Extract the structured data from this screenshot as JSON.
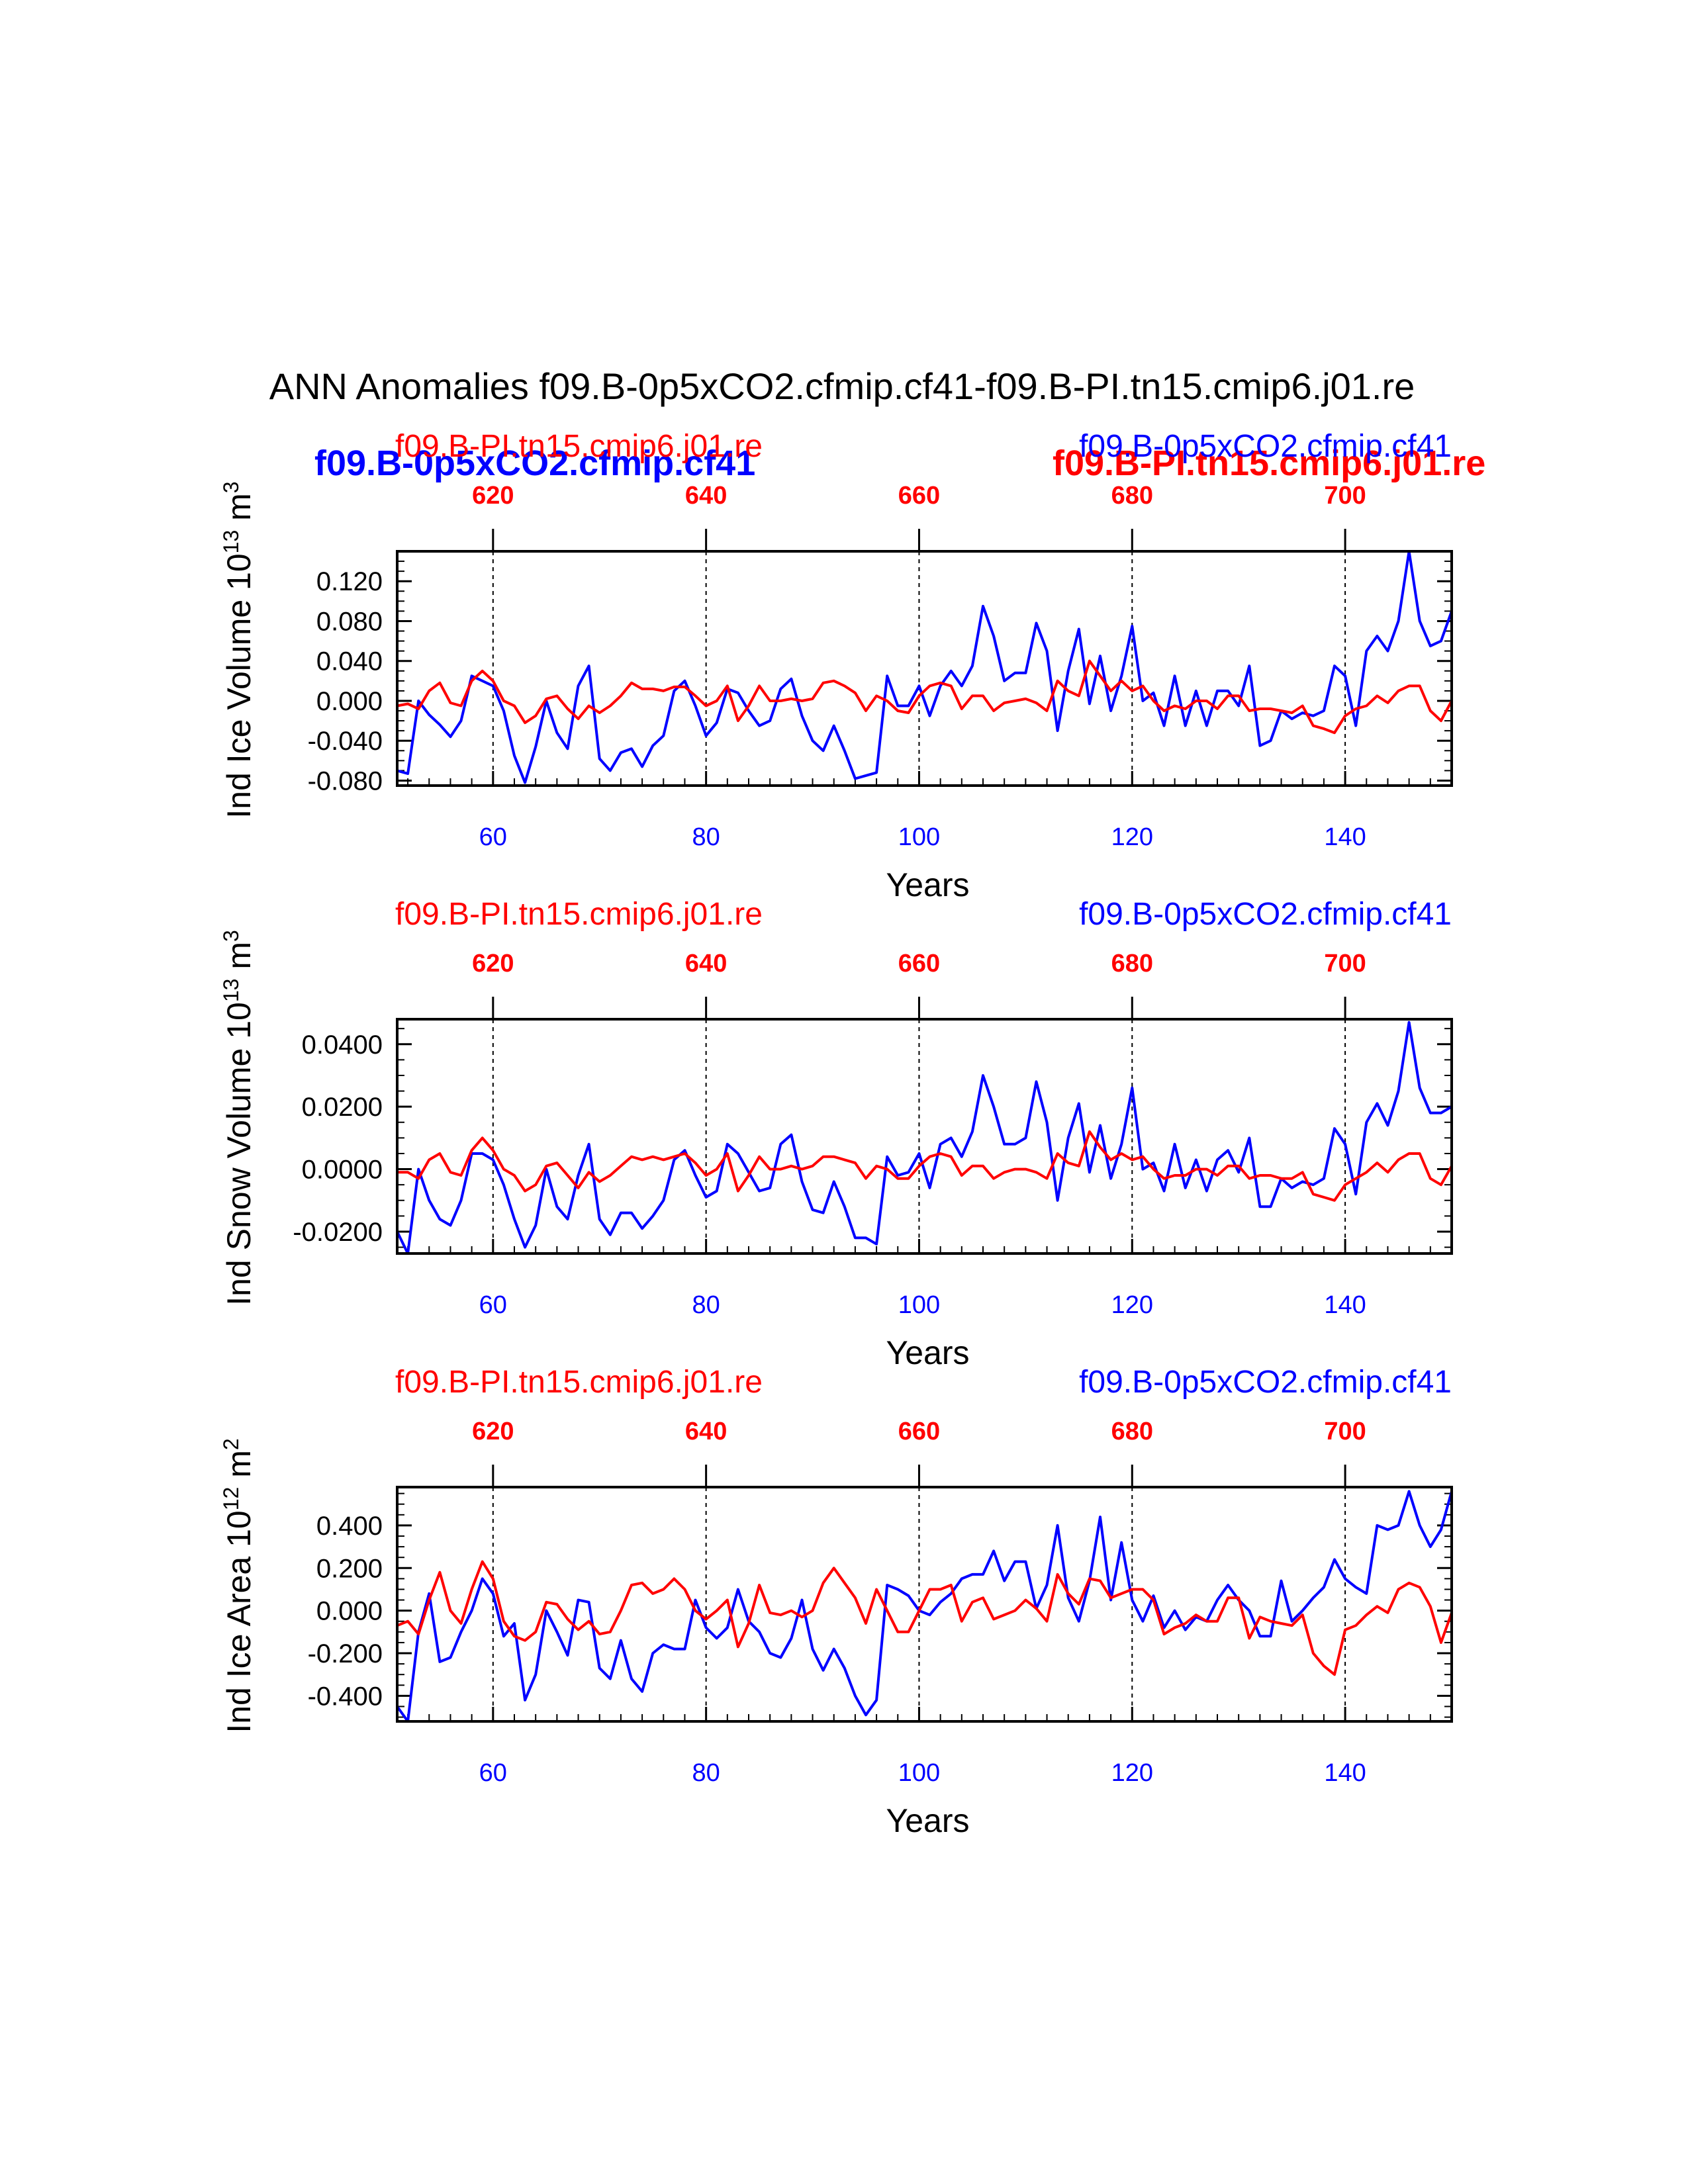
{
  "title": "ANN Anomalies f09.B-0p5xCO2.cfmip.cf41-f09.B-PI.tn15.cmip6.j01.re",
  "overlay_legend": {
    "left": "f09.B-0p5xCO2.cfmip.cf41",
    "right": "f09.B-PI.tn15.cmip6.j01.re"
  },
  "colors": {
    "blue": "#0000ff",
    "red": "#ff0000",
    "black": "#000000"
  },
  "chart_data": [
    {
      "type": "line",
      "ylabel": "Ind Ice Volume 10",
      "ylabel_exp": "13",
      "ylabel_unit": " m",
      "ylabel_unit_exp": "3",
      "xlabel": "Years",
      "top_left_label": "f09.B-PI.tn15.cmip6.j01.re",
      "top_right_label": "f09.B-0p5xCO2.cfmip.cf41",
      "xlim": [
        51,
        150
      ],
      "ylim": [
        -0.085,
        0.15
      ],
      "yticks": [
        -0.08,
        -0.04,
        0.0,
        0.04,
        0.08,
        0.12
      ],
      "yticklabels": [
        "-0.080",
        "-0.040",
        "0.000",
        "0.040",
        "0.080",
        "0.120"
      ],
      "xticks_bottom": [
        60,
        80,
        100,
        120,
        140
      ],
      "xticks_top": [
        620,
        640,
        660,
        680,
        700
      ],
      "x": [
        51,
        52,
        53,
        54,
        55,
        56,
        57,
        58,
        59,
        60,
        61,
        62,
        63,
        64,
        65,
        66,
        67,
        68,
        69,
        70,
        71,
        72,
        73,
        74,
        75,
        76,
        77,
        78,
        79,
        80,
        81,
        82,
        83,
        84,
        85,
        86,
        87,
        88,
        89,
        90,
        91,
        92,
        93,
        94,
        95,
        96,
        97,
        98,
        99,
        100,
        101,
        102,
        103,
        104,
        105,
        106,
        107,
        108,
        109,
        110,
        111,
        112,
        113,
        114,
        115,
        116,
        117,
        118,
        119,
        120,
        121,
        122,
        123,
        124,
        125,
        126,
        127,
        128,
        129,
        130,
        131,
        132,
        133,
        134,
        135,
        136,
        137,
        138,
        139,
        140,
        141,
        142,
        143,
        144,
        145,
        146,
        147,
        148,
        149,
        150
      ],
      "series": [
        {
          "name": "f09.B-0p5xCO2.cfmip.cf41",
          "color": "blue",
          "values": [
            -0.07,
            -0.073,
            0.0,
            -0.014,
            -0.024,
            -0.036,
            -0.02,
            0.025,
            0.02,
            0.015,
            -0.01,
            -0.055,
            -0.082,
            -0.046,
            0.0,
            -0.032,
            -0.048,
            0.015,
            0.035,
            -0.058,
            -0.07,
            -0.052,
            -0.048,
            -0.066,
            -0.045,
            -0.035,
            0.01,
            0.02,
            -0.005,
            -0.035,
            -0.022,
            0.012,
            0.008,
            -0.01,
            -0.025,
            -0.02,
            0.012,
            0.022,
            -0.015,
            -0.04,
            -0.05,
            -0.025,
            -0.05,
            -0.078,
            -0.075,
            -0.072,
            0.025,
            -0.005,
            -0.005,
            0.015,
            -0.015,
            0.015,
            0.03,
            0.015,
            0.035,
            0.095,
            0.065,
            0.02,
            0.028,
            0.028,
            0.078,
            0.05,
            -0.03,
            0.03,
            0.072,
            -0.003,
            0.045,
            -0.01,
            0.025,
            0.075,
            0.0,
            0.008,
            -0.025,
            0.025,
            -0.025,
            0.01,
            -0.025,
            0.01,
            0.01,
            -0.005,
            0.035,
            -0.045,
            -0.04,
            -0.01,
            -0.018,
            -0.012,
            -0.015,
            -0.01,
            0.035,
            0.025,
            -0.025,
            0.05,
            0.065,
            0.05,
            0.08,
            0.15,
            0.08,
            0.055,
            0.06,
            0.09
          ]
        },
        {
          "name": "f09.B-PI.tn15.cmip6.j01.re",
          "color": "red",
          "values": [
            -0.005,
            -0.003,
            -0.008,
            0.01,
            0.018,
            -0.002,
            -0.005,
            0.02,
            0.03,
            0.02,
            0.0,
            -0.005,
            -0.022,
            -0.015,
            0.002,
            0.005,
            -0.008,
            -0.018,
            -0.005,
            -0.012,
            -0.005,
            0.005,
            0.018,
            0.012,
            0.012,
            0.01,
            0.014,
            0.014,
            0.005,
            -0.005,
            0.0,
            0.015,
            -0.02,
            -0.005,
            0.015,
            0.0,
            0.0,
            0.002,
            0.0,
            0.002,
            0.018,
            0.02,
            0.015,
            0.008,
            -0.01,
            0.005,
            0.0,
            -0.01,
            -0.012,
            0.005,
            0.015,
            0.018,
            0.015,
            -0.008,
            0.005,
            0.005,
            -0.01,
            -0.002,
            0.0,
            0.002,
            -0.002,
            -0.01,
            0.02,
            0.01,
            0.005,
            0.04,
            0.025,
            0.01,
            0.02,
            0.01,
            0.015,
            0.0,
            -0.01,
            -0.005,
            -0.008,
            0.0,
            0.0,
            -0.008,
            0.005,
            0.005,
            -0.01,
            -0.008,
            -0.008,
            -0.01,
            -0.012,
            -0.005,
            -0.025,
            -0.028,
            -0.032,
            -0.015,
            -0.008,
            -0.005,
            0.005,
            -0.002,
            0.01,
            0.015,
            0.015,
            -0.01,
            -0.02,
            0.0
          ]
        }
      ]
    },
    {
      "type": "line",
      "ylabel": "Ind Snow Volume 10",
      "ylabel_exp": "13",
      "ylabel_unit": " m",
      "ylabel_unit_exp": "3",
      "xlabel": "Years",
      "top_left_label": "f09.B-PI.tn15.cmip6.j01.re",
      "top_right_label": "f09.B-0p5xCO2.cfmip.cf41",
      "xlim": [
        51,
        150
      ],
      "ylim": [
        -0.027,
        0.048
      ],
      "yticks": [
        -0.02,
        0.0,
        0.02,
        0.04
      ],
      "yticklabels": [
        "-0.0200",
        "0.0000",
        "0.0200",
        "0.0400"
      ],
      "xticks_bottom": [
        60,
        80,
        100,
        120,
        140
      ],
      "xticks_top": [
        620,
        640,
        660,
        680,
        700
      ],
      "x": [
        51,
        52,
        53,
        54,
        55,
        56,
        57,
        58,
        59,
        60,
        61,
        62,
        63,
        64,
        65,
        66,
        67,
        68,
        69,
        70,
        71,
        72,
        73,
        74,
        75,
        76,
        77,
        78,
        79,
        80,
        81,
        82,
        83,
        84,
        85,
        86,
        87,
        88,
        89,
        90,
        91,
        92,
        93,
        94,
        95,
        96,
        97,
        98,
        99,
        100,
        101,
        102,
        103,
        104,
        105,
        106,
        107,
        108,
        109,
        110,
        111,
        112,
        113,
        114,
        115,
        116,
        117,
        118,
        119,
        120,
        121,
        122,
        123,
        124,
        125,
        126,
        127,
        128,
        129,
        130,
        131,
        132,
        133,
        134,
        135,
        136,
        137,
        138,
        139,
        140,
        141,
        142,
        143,
        144,
        145,
        146,
        147,
        148,
        149,
        150
      ],
      "series": [
        {
          "name": "f09.B-0p5xCO2.cfmip.cf41",
          "color": "blue",
          "values": [
            -0.02,
            -0.027,
            0.0,
            -0.01,
            -0.016,
            -0.018,
            -0.01,
            0.005,
            0.005,
            0.003,
            -0.005,
            -0.016,
            -0.025,
            -0.018,
            0.0,
            -0.012,
            -0.016,
            -0.002,
            0.008,
            -0.016,
            -0.021,
            -0.014,
            -0.014,
            -0.019,
            -0.015,
            -0.01,
            0.003,
            0.006,
            -0.002,
            -0.009,
            -0.007,
            0.008,
            0.005,
            -0.001,
            -0.007,
            -0.006,
            0.008,
            0.011,
            -0.004,
            -0.013,
            -0.014,
            -0.004,
            -0.012,
            -0.022,
            -0.022,
            -0.024,
            0.004,
            -0.002,
            -0.001,
            0.005,
            -0.006,
            0.008,
            0.01,
            0.004,
            0.012,
            0.03,
            0.02,
            0.008,
            0.008,
            0.01,
            0.028,
            0.015,
            -0.01,
            0.01,
            0.021,
            -0.001,
            0.014,
            -0.003,
            0.008,
            0.026,
            0.0,
            0.002,
            -0.007,
            0.008,
            -0.006,
            0.003,
            -0.007,
            0.003,
            0.006,
            -0.001,
            0.01,
            -0.012,
            -0.012,
            -0.003,
            -0.006,
            -0.004,
            -0.005,
            -0.003,
            0.013,
            0.008,
            -0.008,
            0.015,
            0.021,
            0.014,
            0.025,
            0.047,
            0.026,
            0.018,
            0.018,
            0.02
          ]
        },
        {
          "name": "f09.B-PI.tn15.cmip6.j01.re",
          "color": "red",
          "values": [
            -0.001,
            -0.001,
            -0.003,
            0.003,
            0.005,
            -0.001,
            -0.002,
            0.006,
            0.01,
            0.006,
            0.0,
            -0.002,
            -0.007,
            -0.005,
            0.001,
            0.002,
            -0.002,
            -0.006,
            -0.001,
            -0.004,
            -0.002,
            0.001,
            0.004,
            0.003,
            0.004,
            0.003,
            0.004,
            0.005,
            0.002,
            -0.002,
            0.0,
            0.005,
            -0.007,
            -0.002,
            0.004,
            0.0,
            0.0,
            0.001,
            0.0,
            0.001,
            0.004,
            0.004,
            0.003,
            0.002,
            -0.003,
            0.001,
            0.0,
            -0.003,
            -0.003,
            0.001,
            0.004,
            0.005,
            0.004,
            -0.002,
            0.001,
            0.001,
            -0.003,
            -0.001,
            0.0,
            0.0,
            -0.001,
            -0.003,
            0.005,
            0.002,
            0.001,
            0.012,
            0.007,
            0.003,
            0.005,
            0.003,
            0.004,
            0.0,
            -0.003,
            -0.002,
            -0.002,
            0.0,
            0.0,
            -0.002,
            0.001,
            0.001,
            -0.003,
            -0.002,
            -0.002,
            -0.003,
            -0.003,
            -0.001,
            -0.008,
            -0.009,
            -0.01,
            -0.005,
            -0.003,
            -0.001,
            0.002,
            -0.001,
            0.003,
            0.005,
            0.005,
            -0.003,
            -0.005,
            0.001
          ]
        }
      ]
    },
    {
      "type": "line",
      "ylabel": "Ind Ice Area 10",
      "ylabel_exp": "12",
      "ylabel_unit": " m",
      "ylabel_unit_exp": "2",
      "xlabel": "Years",
      "top_left_label": "f09.B-PI.tn15.cmip6.j01.re",
      "top_right_label": "f09.B-0p5xCO2.cfmip.cf41",
      "xlim": [
        51,
        150
      ],
      "ylim": [
        -0.52,
        0.58
      ],
      "yticks": [
        -0.4,
        -0.2,
        0.0,
        0.2,
        0.4
      ],
      "yticklabels": [
        "-0.400",
        "-0.200",
        "0.000",
        "0.200",
        "0.400"
      ],
      "xticks_bottom": [
        60,
        80,
        100,
        120,
        140
      ],
      "xticks_top": [
        620,
        640,
        660,
        680,
        700
      ],
      "x": [
        51,
        52,
        53,
        54,
        55,
        56,
        57,
        58,
        59,
        60,
        61,
        62,
        63,
        64,
        65,
        66,
        67,
        68,
        69,
        70,
        71,
        72,
        73,
        74,
        75,
        76,
        77,
        78,
        79,
        80,
        81,
        82,
        83,
        84,
        85,
        86,
        87,
        88,
        89,
        90,
        91,
        92,
        93,
        94,
        95,
        96,
        97,
        98,
        99,
        100,
        101,
        102,
        103,
        104,
        105,
        106,
        107,
        108,
        109,
        110,
        111,
        112,
        113,
        114,
        115,
        116,
        117,
        118,
        119,
        120,
        121,
        122,
        123,
        124,
        125,
        126,
        127,
        128,
        129,
        130,
        131,
        132,
        133,
        134,
        135,
        136,
        137,
        138,
        139,
        140,
        141,
        142,
        143,
        144,
        145,
        146,
        147,
        148,
        149,
        150
      ],
      "series": [
        {
          "name": "f09.B-0p5xCO2.cfmip.cf41",
          "color": "blue",
          "values": [
            -0.45,
            -0.52,
            -0.1,
            0.08,
            -0.24,
            -0.22,
            -0.1,
            0.0,
            0.15,
            0.08,
            -0.12,
            -0.06,
            -0.42,
            -0.3,
            0.0,
            -0.1,
            -0.21,
            0.05,
            0.04,
            -0.27,
            -0.32,
            -0.14,
            -0.32,
            -0.38,
            -0.2,
            -0.16,
            -0.18,
            -0.18,
            0.05,
            -0.08,
            -0.13,
            -0.08,
            0.1,
            -0.05,
            -0.1,
            -0.2,
            -0.22,
            -0.13,
            0.05,
            -0.18,
            -0.28,
            -0.18,
            -0.27,
            -0.4,
            -0.49,
            -0.42,
            0.12,
            0.1,
            0.07,
            0.0,
            -0.02,
            0.04,
            0.08,
            0.15,
            0.17,
            0.17,
            0.28,
            0.14,
            0.23,
            0.23,
            0.01,
            0.12,
            0.4,
            0.06,
            -0.05,
            0.14,
            0.44,
            0.05,
            0.32,
            0.05,
            -0.05,
            0.07,
            -0.08,
            0.0,
            -0.09,
            -0.03,
            -0.05,
            0.05,
            0.12,
            0.05,
            0.0,
            -0.12,
            -0.12,
            0.14,
            -0.05,
            0.0,
            0.06,
            0.11,
            0.24,
            0.15,
            0.11,
            0.08,
            0.4,
            0.38,
            0.4,
            0.56,
            0.4,
            0.3,
            0.38,
            0.56
          ]
        },
        {
          "name": "f09.B-PI.tn15.cmip6.j01.re",
          "color": "red",
          "values": [
            -0.07,
            -0.05,
            -0.11,
            0.05,
            0.18,
            0.0,
            -0.06,
            0.1,
            0.23,
            0.15,
            -0.05,
            -0.12,
            -0.14,
            -0.1,
            0.04,
            0.03,
            -0.04,
            -0.09,
            -0.05,
            -0.11,
            -0.1,
            0.0,
            0.12,
            0.13,
            0.08,
            0.1,
            0.15,
            0.1,
            0.0,
            -0.04,
            0.0,
            0.05,
            -0.17,
            -0.06,
            0.12,
            -0.01,
            -0.02,
            0.0,
            -0.03,
            0.0,
            0.13,
            0.2,
            0.13,
            0.06,
            -0.06,
            0.1,
            0.0,
            -0.1,
            -0.1,
            0.0,
            0.1,
            0.1,
            0.12,
            -0.05,
            0.04,
            0.06,
            -0.04,
            -0.02,
            0.0,
            0.05,
            0.01,
            -0.05,
            0.17,
            0.08,
            0.03,
            0.15,
            0.14,
            0.06,
            0.08,
            0.1,
            0.1,
            0.05,
            -0.11,
            -0.08,
            -0.06,
            -0.02,
            -0.05,
            -0.05,
            0.06,
            0.06,
            -0.13,
            -0.03,
            -0.05,
            -0.06,
            -0.07,
            -0.02,
            -0.2,
            -0.26,
            -0.3,
            -0.09,
            -0.07,
            -0.02,
            0.02,
            -0.01,
            0.1,
            0.13,
            0.11,
            0.02,
            -0.15,
            -0.01
          ]
        }
      ]
    }
  ]
}
